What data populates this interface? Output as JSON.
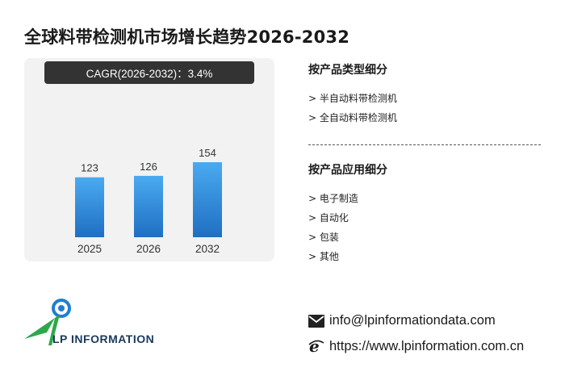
{
  "title": "全球料带检测机市场增长趋势2026-2032",
  "cagr_label": "CAGR(2026-2032)：3.4%",
  "chart_data": {
    "type": "bar",
    "categories": [
      "2025",
      "2026",
      "2032"
    ],
    "values": [
      123,
      126,
      154
    ],
    "data_labels": [
      "123",
      "126",
      "154"
    ],
    "ylim": [
      0,
      154
    ],
    "bar_color_top": "#4aaaf0",
    "bar_color_bottom": "#1f6fc2"
  },
  "segments": {
    "type": {
      "heading": "按产品类型细分",
      "items": [
        "> 半自动料带检测机",
        "> 全自动料带检测机"
      ]
    },
    "application": {
      "heading": "按产品应用细分",
      "items": [
        "> 电子制造",
        "> 自动化",
        "> 包装",
        "> 其他"
      ]
    }
  },
  "brand": {
    "name": "LP INFORMATION"
  },
  "contact": {
    "email": "info@lpinformationdata.com",
    "website": "https://www.lpinformation.com.cn",
    "email_icon": "mail-icon",
    "website_icon": "ie-browser-icon"
  }
}
